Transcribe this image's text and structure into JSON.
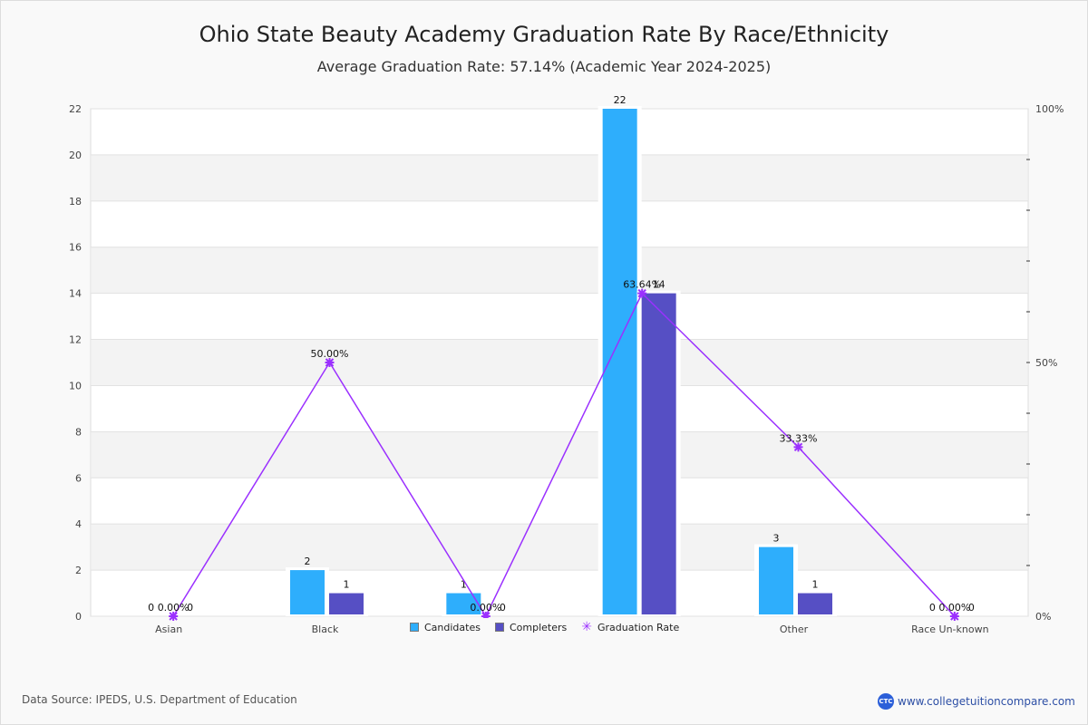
{
  "title": "Ohio State Beauty Academy Graduation Rate By Race/Ethnicity",
  "subtitle": "Average Graduation Rate: 57.14% (Academic Year 2024-2025)",
  "footer": {
    "source": "Data Source: IPEDS, U.S. Department of Education",
    "brand_logo": "CTC",
    "brand_url": "www.collegetuitioncompare.com"
  },
  "legend": {
    "candidates": "Candidates",
    "completers": "Completers",
    "rate": "Graduation Rate"
  },
  "colors": {
    "candidates": "#2eaefc",
    "completers": "#564fc4",
    "rate": "#9b30ff",
    "band": "#f3f3f3",
    "grid": "#e2e2e2"
  },
  "chart_data": {
    "type": "bar",
    "title": "Ohio State Beauty Academy Graduation Rate By Race/Ethnicity",
    "subtitle": "Average Graduation Rate: 57.14% (Academic Year 2024-2025)",
    "categories": [
      "Asian",
      "Black",
      "",
      "",
      "Other",
      "Race Un-known"
    ],
    "series": [
      {
        "name": "Candidates",
        "type": "bar",
        "axis": "left",
        "values": [
          0,
          2,
          1,
          22,
          3,
          0
        ]
      },
      {
        "name": "Completers",
        "type": "bar",
        "axis": "left",
        "values": [
          0,
          1,
          0,
          14,
          1,
          0
        ]
      },
      {
        "name": "Graduation Rate",
        "type": "line",
        "axis": "right",
        "values": [
          0,
          50.0,
          0,
          63.64,
          33.33,
          0
        ],
        "labels": [
          "0.00%",
          "50.00%",
          "0.00%",
          "63.64%",
          "33.33%",
          "0.00%"
        ]
      }
    ],
    "left_axis": {
      "ylim": [
        0,
        22
      ],
      "ticks": [
        0,
        2,
        4,
        6,
        8,
        10,
        12,
        14,
        16,
        18,
        20,
        22
      ]
    },
    "right_axis": {
      "ylim": [
        0,
        100
      ],
      "tick_labels": [
        "0%",
        "50%",
        "100%"
      ],
      "minor_step": 10
    },
    "legend_position": "bottom-center",
    "grid": true
  }
}
